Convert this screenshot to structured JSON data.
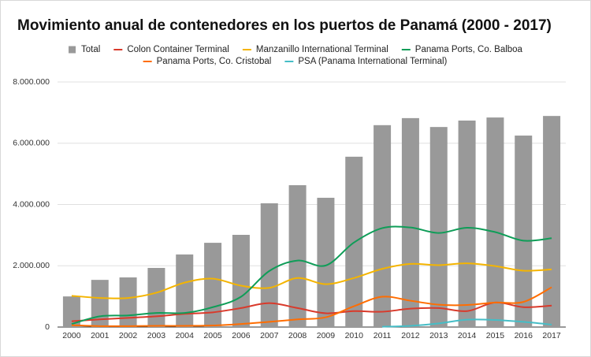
{
  "chart_data": {
    "type": "combo",
    "title": "Movimiento anual de contenedores en los puertos de Panamá (2000 - 2017)",
    "categories": [
      "2000",
      "2001",
      "2002",
      "2003",
      "2004",
      "2005",
      "2006",
      "2007",
      "2008",
      "2009",
      "2010",
      "2011",
      "2012",
      "2013",
      "2014",
      "2015",
      "2016",
      "2017"
    ],
    "series": [
      {
        "name": "Total",
        "type": "bar",
        "color": "#999999",
        "values": [
          1000000,
          1540000,
          1620000,
          1930000,
          2370000,
          2750000,
          3010000,
          4040000,
          4630000,
          4220000,
          5560000,
          6590000,
          6820000,
          6530000,
          6740000,
          6840000,
          6250000,
          6890000
        ]
      },
      {
        "name": "Colon Container Terminal",
        "type": "line",
        "color": "#d93a2b",
        "values": [
          190000,
          250000,
          300000,
          350000,
          430000,
          480000,
          620000,
          780000,
          620000,
          450000,
          520000,
          500000,
          600000,
          620000,
          520000,
          800000,
          650000,
          700000
        ]
      },
      {
        "name": "Manzanillo International Terminal",
        "type": "line",
        "color": "#f4b400",
        "values": [
          1020000,
          950000,
          950000,
          1120000,
          1450000,
          1580000,
          1350000,
          1280000,
          1600000,
          1400000,
          1600000,
          1900000,
          2060000,
          2020000,
          2080000,
          1990000,
          1840000,
          1880000
        ]
      },
      {
        "name": "Panama Ports, Co. Balboa",
        "type": "line",
        "color": "#0f9d58",
        "values": [
          100000,
          350000,
          380000,
          460000,
          460000,
          650000,
          990000,
          1830000,
          2170000,
          2010000,
          2760000,
          3230000,
          3250000,
          3070000,
          3240000,
          3100000,
          2820000,
          2900000
        ]
      },
      {
        "name": "Panama Ports, Co. Cristobal",
        "type": "line",
        "color": "#ff6d01",
        "values": [
          60000,
          30000,
          30000,
          40000,
          40000,
          50000,
          100000,
          170000,
          250000,
          320000,
          680000,
          990000,
          860000,
          730000,
          720000,
          800000,
          820000,
          1300000
        ]
      },
      {
        "name": "PSA (Panama International Terminal)",
        "type": "line",
        "color": "#46bdc6",
        "values": [
          null,
          null,
          null,
          null,
          null,
          null,
          null,
          null,
          null,
          null,
          null,
          10000,
          40000,
          120000,
          240000,
          230000,
          170000,
          80000
        ]
      }
    ],
    "ylim": [
      0,
      8000000
    ],
    "yticks": [
      0,
      {
        "value": 2000000,
        "label": "2.000.000"
      },
      {
        "value": 4000000,
        "label": "4.000.000"
      },
      {
        "value": 6000000,
        "label": "6.000.000"
      },
      {
        "value": 8000000,
        "label": "8.000.000"
      }
    ],
    "grid": true
  }
}
